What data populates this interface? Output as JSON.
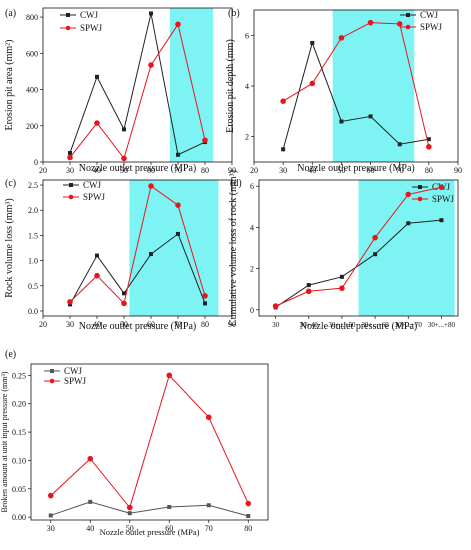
{
  "chart_data": [
    {
      "panel": "(a)",
      "type": "line",
      "ylabel": "Erosion pit area (mm²)",
      "xlabel": "Nozzle outlet pressure (MPa)",
      "xlim": [
        20,
        90
      ],
      "ylim": [
        0,
        850
      ],
      "x_ticks": [
        20,
        30,
        40,
        50,
        60,
        70,
        80,
        90
      ],
      "y_ticks": [
        0,
        200,
        400,
        600,
        800
      ],
      "highlight": [
        67,
        83
      ],
      "x": [
        30,
        40,
        50,
        60,
        70,
        80
      ],
      "series": [
        {
          "name": "CWJ",
          "color": "#222222",
          "marker": "square",
          "values": [
            50,
            470,
            180,
            820,
            40,
            110
          ]
        },
        {
          "name": "SPWJ",
          "color": "#e8161c",
          "marker": "circle",
          "values": [
            25,
            215,
            20,
            535,
            760,
            120
          ]
        }
      ],
      "legend_position": "top-left"
    },
    {
      "panel": "(b)",
      "type": "line",
      "ylabel": "Erosion pit depth (mm)",
      "xlabel": "Nozzle outlet pressure (MPa)",
      "xlim": [
        20,
        90
      ],
      "ylim": [
        1,
        7
      ],
      "x_ticks": [
        20,
        30,
        40,
        50,
        60,
        70,
        80,
        90
      ],
      "y_ticks": [
        2,
        4,
        6
      ],
      "highlight": [
        47,
        75
      ],
      "x": [
        30,
        40,
        50,
        60,
        70,
        80
      ],
      "series": [
        {
          "name": "CWJ",
          "color": "#222222",
          "marker": "square",
          "values": [
            1.5,
            5.7,
            2.6,
            2.8,
            1.7,
            1.9
          ]
        },
        {
          "name": "SPWJ",
          "color": "#e8161c",
          "marker": "circle",
          "values": [
            3.4,
            4.1,
            5.9,
            6.5,
            6.45,
            1.6
          ]
        }
      ],
      "legend_position": "top-right"
    },
    {
      "panel": "(c)",
      "type": "line",
      "ylabel": "Rock volume loss (mm³)",
      "xlabel": "Nozzle outlet pressure (MPa)",
      "xlim": [
        20,
        90
      ],
      "ylim": [
        -0.1,
        2.6
      ],
      "x_ticks": [
        20,
        30,
        40,
        50,
        60,
        70,
        80,
        90
      ],
      "y_ticks": [
        0.0,
        0.5,
        1.0,
        1.5,
        2.0,
        2.5
      ],
      "highlight": [
        52,
        85
      ],
      "x": [
        30,
        40,
        50,
        60,
        70,
        80
      ],
      "series": [
        {
          "name": "CWJ",
          "color": "#222222",
          "marker": "square",
          "values": [
            0.13,
            1.1,
            0.35,
            1.13,
            1.53,
            0.15
          ]
        },
        {
          "name": "SPWJ",
          "color": "#e8161c",
          "marker": "circle",
          "values": [
            0.18,
            0.7,
            0.15,
            2.48,
            2.1,
            0.3
          ]
        }
      ],
      "legend_position": "top-left"
    },
    {
      "panel": "(d)",
      "type": "line",
      "ylabel": "Cumulative volume loss of rock (mm³)",
      "xlabel": "Nozzle outlet pressure (MPa)",
      "categories": [
        "30",
        "30+40",
        "30+...+50",
        "30+...+60",
        "30+...+70",
        "30+...+80"
      ],
      "ylim": [
        -0.3,
        6.3
      ],
      "y_ticks": [
        0,
        2,
        4,
        6
      ],
      "highlight": [
        2.5,
        5.4
      ],
      "series": [
        {
          "name": "CWJ",
          "color": "#222222",
          "marker": "square",
          "values": [
            0.12,
            1.2,
            1.6,
            2.7,
            4.2,
            4.35
          ]
        },
        {
          "name": "SPWJ",
          "color": "#e8161c",
          "marker": "circle",
          "values": [
            0.18,
            0.9,
            1.05,
            3.5,
            5.6,
            5.95
          ]
        }
      ],
      "legend_position": "top-right"
    },
    {
      "panel": "(e)",
      "type": "line",
      "ylabel": "Broken amount at unit input pressure (mm³)",
      "xlabel": "Nozzle outlet pressure (MPa)",
      "categories": [
        "30",
        "40",
        "50",
        "60",
        "70",
        "80"
      ],
      "ylim": [
        -0.005,
        0.27
      ],
      "y_ticks": [
        0.0,
        0.05,
        0.1,
        0.15,
        0.2,
        0.25
      ],
      "series": [
        {
          "name": "CWJ",
          "color": "#555555",
          "marker": "square",
          "values": [
            0.003,
            0.027,
            0.007,
            0.018,
            0.021,
            0.002
          ]
        },
        {
          "name": "SPWJ",
          "color": "#e8161c",
          "marker": "circle",
          "values": [
            0.038,
            0.103,
            0.017,
            0.25,
            0.176,
            0.024
          ]
        }
      ],
      "legend_position": "top-left"
    }
  ]
}
